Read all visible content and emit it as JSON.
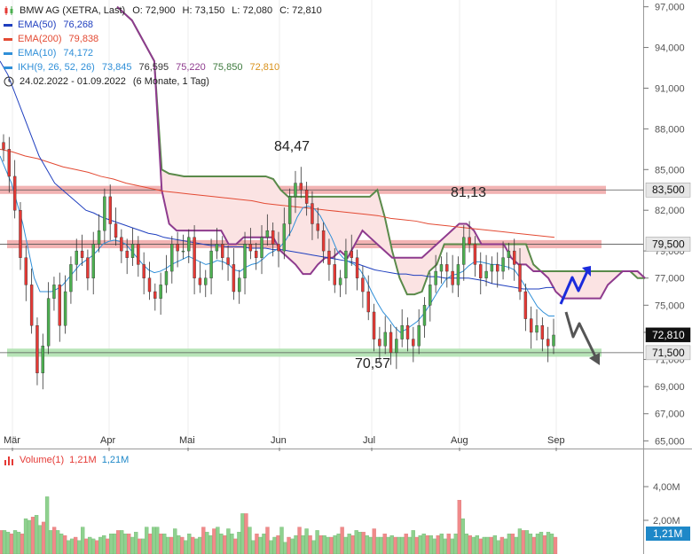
{
  "chart_data": {
    "type": "candlestick",
    "instrument": "BMW AG (XETRA, Last)",
    "ohlc_summary": {
      "O": "O: 72,900",
      "H": "H: 73,150",
      "L": "L: 72,080",
      "C": "C: 72,810"
    },
    "legend": [
      {
        "name": "EMA(50)",
        "values": [
          "76,268"
        ],
        "color": "#1f3fbf"
      },
      {
        "name": "EMA(200)",
        "values": [
          "79,838"
        ],
        "color": "#e34a33"
      },
      {
        "name": "EMA(10)",
        "values": [
          "74,172"
        ],
        "color": "#2f8fd8"
      },
      {
        "name": "IKH(9, 26, 52, 26)",
        "values": [
          "73,845",
          "76,595",
          "75,220",
          "75,850",
          "72,810"
        ],
        "colors": [
          "#2f8fd8",
          "#333333",
          "#8e3b8e",
          "#3d7a3d",
          "#d9911a"
        ],
        "color": "#2f8fd8"
      }
    ],
    "date_range": "24.02.2022 - 01.09.2022",
    "period": "(6 Monate, 1 Tag)",
    "x_labels": [
      "Mär",
      "Apr",
      "Mai",
      "Jun",
      "Jul",
      "Aug",
      "Sep"
    ],
    "y_ticks": [
      "97,000",
      "94,000",
      "91,000",
      "88,000",
      "85,000",
      "82,000",
      "79,000",
      "77,000",
      "75,000",
      "73,000",
      "71,000",
      "69,000",
      "67,000",
      "65,000"
    ],
    "ylim": [
      64.5,
      97.5
    ],
    "price_markers": [
      {
        "label": "83,500",
        "value": 83.5
      },
      {
        "label": "79,500",
        "value": 79.5
      },
      {
        "label": "72,810",
        "value": 72.81
      },
      {
        "label": "71,500",
        "value": 71.5
      }
    ],
    "annotations": [
      "84,47",
      "81,13",
      "70,57"
    ],
    "closes": [
      86.5,
      84.5,
      82.0,
      78.5,
      76.5,
      73.5,
      70.0,
      72.0,
      75.5,
      76.5,
      73.5,
      76.0,
      78.0,
      79.0,
      78.5,
      77.0,
      79.5,
      80.5,
      83.0,
      81.0,
      80.0,
      79.0,
      78.5,
      79.5,
      78.0,
      77.0,
      76.0,
      75.5,
      76.5,
      77.5,
      79.5,
      79.0,
      79.0,
      80.0,
      77.0,
      76.5,
      77.0,
      79.0,
      79.5,
      78.5,
      78.0,
      76.0,
      77.0,
      79.5,
      79.0,
      78.5,
      80.0,
      80.5,
      79.5,
      79.0,
      81.0,
      83.0,
      84.0,
      83.5,
      82.5,
      81.0,
      80.5,
      79.0,
      78.0,
      76.5,
      77.0,
      79.0,
      78.5,
      77.0,
      76.0,
      74.5,
      72.5,
      72.0,
      73.0,
      71.5,
      72.5,
      73.5,
      72.5,
      72.0,
      73.5,
      75.0,
      76.5,
      77.5,
      78.0,
      77.5,
      76.5,
      78.0,
      80.0,
      79.5,
      78.0,
      77.0,
      77.5,
      78.0,
      77.5,
      78.5,
      79.0,
      78.0,
      76.0,
      74.0,
      73.0,
      73.5,
      72.5,
      72.0,
      72.8
    ],
    "ema10": [
      86.0,
      85.0,
      84.0,
      82.5,
      81.0,
      79.0,
      77.0,
      76.0,
      76.0,
      76.0,
      76.2,
      76.5,
      77.0,
      77.5,
      78.0,
      78.3,
      78.6,
      79.0,
      79.5,
      79.7,
      79.8,
      79.7,
      79.5,
      79.0,
      78.5,
      78.0,
      77.6,
      77.4,
      77.5,
      77.7,
      78.0,
      78.2,
      78.4,
      78.6,
      78.4,
      78.2,
      78.0,
      78.1,
      78.3,
      78.2,
      78.0,
      77.6,
      77.5,
      77.8,
      78.0,
      78.1,
      78.4,
      78.8,
      79.0,
      79.3,
      79.8,
      80.5,
      81.5,
      82.2,
      82.3,
      82.1,
      81.6,
      80.8,
      80.0,
      79.0,
      78.5,
      78.2,
      78.0,
      77.6,
      76.9,
      76.0,
      75.2,
      74.5,
      74.0,
      73.4,
      73.0,
      73.2,
      73.5,
      73.8,
      74.3,
      74.9,
      75.6,
      76.3,
      76.9,
      77.2,
      77.3,
      77.5,
      77.9,
      78.2,
      78.2,
      78.1,
      78.0,
      78.0,
      77.9,
      77.8,
      77.6,
      77.0,
      76.3,
      75.6,
      74.9,
      74.5,
      74.2,
      74.2
    ],
    "ema50": [
      93.0,
      92.0,
      90.5,
      89.0,
      87.5,
      86.0,
      85.0,
      84.0,
      83.5,
      83.0,
      82.5,
      82.0,
      81.8,
      81.5,
      81.3,
      81.1,
      80.9,
      80.7,
      80.5,
      80.3,
      80.2,
      80.0,
      79.9,
      79.8,
      79.7,
      79.6,
      79.5,
      79.4,
      79.4,
      79.3,
      79.3,
      79.3,
      79.2,
      79.2,
      79.2,
      79.1,
      79.1,
      79.0,
      78.9,
      78.8,
      78.7,
      78.6,
      78.5,
      78.4,
      78.3,
      78.2,
      78.0,
      77.8,
      77.6,
      77.5,
      77.4,
      77.3,
      77.3,
      77.2,
      77.2,
      77.1,
      77.1,
      77.0,
      77.0,
      77.0,
      77.0,
      76.9,
      76.8,
      76.6,
      76.5,
      76.4,
      76.3,
      76.2,
      76.2,
      76.2,
      76.3,
      76.3
    ],
    "ema200": [
      86.5,
      86.3,
      86.0,
      85.8,
      85.5,
      85.2,
      85.0,
      84.8,
      84.5,
      84.3,
      84.0,
      83.8,
      83.6,
      83.4,
      83.3,
      83.2,
      83.1,
      83.0,
      82.9,
      82.8,
      82.7,
      82.5,
      82.4,
      82.3,
      82.2,
      82.1,
      82.0,
      81.9,
      81.8,
      81.7,
      81.6,
      81.4,
      81.3,
      81.2,
      81.0,
      80.9,
      80.8,
      80.7,
      80.6,
      80.5,
      80.4,
      80.3,
      80.2,
      80.1,
      80.0
    ],
    "kumo_senkou_a": [
      97.0,
      96.5,
      96.0,
      95.0,
      94.0,
      93.0,
      85.0,
      84.7,
      84.6,
      84.5,
      84.5,
      84.5,
      84.5,
      84.5,
      84.5,
      84.5,
      84.5,
      84.5,
      84.5,
      84.5,
      84.5,
      84.3,
      83.5,
      83.0,
      83.0,
      83.0,
      83.0,
      83.0,
      83.0,
      83.0,
      83.0,
      83.0,
      83.0,
      83.0,
      83.0,
      83.5,
      81.5,
      79.0,
      77.0,
      75.8,
      75.8,
      76.0,
      77.5,
      78.0,
      79.5,
      79.5,
      79.5,
      79.5,
      79.5,
      79.5,
      79.5,
      79.5,
      79.5,
      79.5,
      79.5,
      79.5,
      78.0,
      77.5,
      77.5,
      77.5,
      77.5,
      77.5,
      77.5,
      77.5,
      77.5,
      77.5,
      77.5,
      77.5,
      77.5,
      77.5,
      77.0,
      77.0
    ],
    "kumo_senkou_b": [
      97.0,
      96.5,
      96.0,
      95.0,
      94.0,
      93.0,
      83.5,
      81.0,
      80.5,
      80.5,
      80.5,
      80.5,
      80.5,
      80.5,
      80.5,
      79.5,
      79.5,
      80.0,
      80.0,
      80.0,
      80.0,
      80.0,
      79.0,
      78.5,
      78.0,
      77.3,
      77.3,
      78.0,
      78.5,
      78.5,
      79.0,
      78.5,
      79.5,
      80.5,
      80.0,
      79.5,
      79.0,
      78.5,
      78.5,
      78.5,
      78.5,
      78.5,
      79.0,
      79.5,
      80.0,
      80.5,
      81.0,
      81.0,
      80.5,
      79.5,
      79.5,
      79.5,
      79.5,
      78.5,
      78.0,
      78.0,
      77.5,
      77.5,
      77.0,
      76.0,
      75.5,
      75.5,
      75.5,
      75.5,
      75.5,
      75.5,
      76.5,
      77.0,
      77.5,
      77.5,
      77.5,
      77.0
    ],
    "volume_title": "Volume(1)",
    "volume_values": [
      "1,21M",
      "1,21M"
    ],
    "volume_ticks": [
      "4,00M",
      "2,00M"
    ],
    "volume_last": "1,21M",
    "volume_ylim": [
      0,
      5.0
    ],
    "volumes": [
      1.4,
      1.4,
      1.3,
      1.2,
      1.4,
      1.3,
      1.2,
      2.1,
      2.0,
      2.2,
      2.3,
      1.7,
      1.9,
      3.4,
      1.4,
      1.6,
      1.4,
      1.2,
      1.1,
      0.8,
      0.9,
      1.0,
      0.8,
      1.6,
      0.9,
      1.0,
      0.9,
      0.8,
      1.0,
      1.1,
      0.9,
      1.2,
      1.2,
      1.4,
      1.4,
      1.2,
      1.2,
      1.0,
      1.3,
      0.9,
      0.9,
      1.6,
      1.2,
      1.6,
      1.6,
      1.2,
      1.2,
      1.0,
      1.0,
      1.5,
      1.1,
      1.0,
      0.8,
      1.2,
      1.0,
      0.9,
      1.0,
      1.6,
      1.3,
      1.1,
      1.5,
      1.6,
      1.2,
      1.1,
      1.5,
      1.2,
      0.9,
      1.3,
      2.4,
      2.4,
      1.6,
      0.8,
      1.2,
      1.0,
      1.2,
      1.6,
      0.8,
      1.0,
      1.1,
      1.6,
      0.7,
      1.0,
      0.9,
      1.1,
      1.6,
      1.1,
      1.5,
      1.1,
      0.8,
      1.4,
      1.1,
      1.1,
      1.0,
      1.0,
      1.1,
      1.2,
      1.6,
      1.0,
      1.2,
      1.1,
      1.4,
      1.3,
      1.3,
      1.1,
      1.0,
      1.5,
      1.0,
      1.0,
      1.2,
      1.0,
      1.1,
      1.0,
      1.0,
      1.0,
      1.2,
      1.0,
      1.4,
      1.0,
      1.1,
      1.2,
      1.1,
      1.1,
      0.9,
      1.1,
      1.2,
      0.9,
      1.2,
      0.9,
      1.2,
      3.2,
      2.1,
      1.2,
      1.1,
      1.0,
      1.1,
      0.9,
      1.0,
      1.0,
      1.0,
      1.1,
      0.8,
      1.0,
      0.9,
      1.2,
      1.2,
      1.0,
      1.5,
      1.4,
      1.4,
      1.2,
      1.0,
      1.2,
      1.3,
      1.1,
      1.3,
      1.2,
      1.0
    ],
    "colors": {
      "up": "#4caf50",
      "down": "#e53935",
      "vol_up": "#8fd18f",
      "vol_down": "#f08a8a",
      "res_band": "#f2b3b3",
      "sup_band": "#b7e4b7",
      "kumo_fill": "#fbe3e3",
      "up_arrow": "#1a2bdc",
      "down_arrow": "#555555",
      "label_dark": "#111111",
      "label_blue": "#1e88c8"
    }
  }
}
